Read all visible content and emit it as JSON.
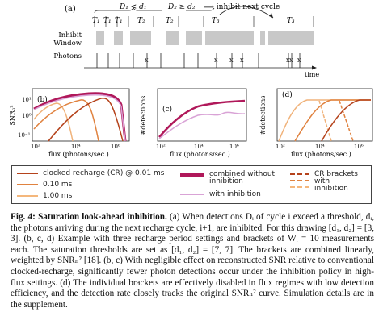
{
  "panel_a": {
    "label": "(a)",
    "d1_rule": "D₁ < d₁",
    "d2_rule": "D₂ ≥ d₂",
    "arrow_text": "⟹ inhibit next cycle",
    "t_labels": [
      "T₁",
      "T₁",
      "T₁",
      "T₂",
      "T₂",
      "T₃",
      "T₃"
    ],
    "row_inhibit": "Inhibit",
    "row_window": "Window",
    "row_photons": "Photons",
    "time_label": "time",
    "x_mark": "x"
  },
  "chart_data": [
    {
      "type": "line",
      "panel": "(b)",
      "xlabel": "flux (photons/sec.)",
      "ylabel": "SNRₙ²",
      "xscale": "log",
      "yscale": "log",
      "x_ticks": [
        "10²",
        "10⁴",
        "10⁶"
      ],
      "y_ticks": [
        "10¹",
        "10⁰",
        "10⁻¹"
      ],
      "series": [
        {
          "name": "clocked recharge (CR) @ 0.01 ms",
          "color": "#b5431c",
          "x": [
            100,
            1000,
            10000,
            100000,
            300000,
            1000000
          ],
          "y": [
            0.5,
            1.1,
            1.8,
            3,
            4,
            0.2
          ]
        },
        {
          "name": "0.10 ms",
          "color": "#e0823f",
          "x": [
            100,
            1000,
            10000,
            30000,
            100000
          ],
          "y": [
            0.5,
            1.1,
            2.5,
            3,
            0.2
          ]
        },
        {
          "name": "1.00 ms",
          "color": "#f0b27a",
          "x": [
            100,
            1000,
            3000,
            10000
          ],
          "y": [
            0.5,
            1.6,
            2,
            0.2
          ]
        },
        {
          "name": "combined without inhibition",
          "color": "#b0185a",
          "x": [
            100,
            1000,
            10000,
            100000,
            1000000
          ],
          "y": [
            0.6,
            2.5,
            3.5,
            4,
            0.5
          ]
        },
        {
          "name": "with inhibition",
          "color": "#d9a3d6",
          "x": [
            100,
            1000,
            10000,
            100000,
            1000000
          ],
          "y": [
            0.6,
            2.4,
            3.3,
            3.8,
            0.5
          ]
        }
      ]
    },
    {
      "type": "line",
      "panel": "(c)",
      "xlabel": "flux (photons/sec.)",
      "ylabel": "#detections",
      "xscale": "log",
      "x_ticks": [
        "10²",
        "10⁴",
        "10⁶"
      ],
      "series": [
        {
          "name": "combined without inhibition",
          "color": "#b0185a",
          "x": [
            100,
            1000,
            10000,
            100000,
            1000000
          ],
          "y": [
            0.15,
            0.6,
            0.85,
            0.95,
            0.97
          ]
        },
        {
          "name": "with inhibition",
          "color": "#d9a3d6",
          "x": [
            100,
            1000,
            10000,
            100000,
            1000000
          ],
          "y": [
            0.1,
            0.45,
            0.6,
            0.55,
            0.6
          ]
        }
      ]
    },
    {
      "type": "line",
      "panel": "(d)",
      "xlabel": "flux (photons/sec.)",
      "ylabel": "#detections",
      "xscale": "log",
      "x_ticks": [
        "10²",
        "10⁴",
        "10⁶"
      ],
      "series": [
        {
          "name": "1.00 ms",
          "color": "#f0b27a",
          "x": [
            100,
            1000,
            10000,
            100000,
            1000000
          ],
          "y": [
            0.05,
            0.6,
            0.95,
            0.97,
            0.97
          ]
        },
        {
          "name": "0.10 ms",
          "color": "#e0823f",
          "x": [
            100,
            1000,
            10000,
            100000,
            1000000
          ],
          "y": [
            0.0,
            0.1,
            0.6,
            0.95,
            0.97
          ]
        },
        {
          "name": "clocked recharge (CR) @ 0.01 ms",
          "color": "#b5431c",
          "x": [
            100,
            1000,
            10000,
            100000,
            1000000
          ],
          "y": [
            0.0,
            0.0,
            0.1,
            0.6,
            0.95
          ]
        }
      ]
    }
  ],
  "legend": {
    "cr_001": "clocked recharge (CR) @ 0.01 ms",
    "cr_010": "0.10 ms",
    "cr_100": "1.00 ms",
    "combined": "combined without\ninhibition",
    "with_inhib": "with inhibition",
    "brackets": "CR brackets\nwith\ninhibition"
  },
  "colors": {
    "cr_001": "#b5431c",
    "cr_010": "#e0823f",
    "cr_100": "#f4b77c",
    "combined": "#b0185a",
    "with_inhib": "#d9a3d6",
    "window_gray": "#c8c8c8"
  },
  "caption": {
    "label": "Fig. 4: Saturation look-ahead inhibition.",
    "lines": [
      "(a) When detections Dᵢ of cycle i exceed",
      "a threshold, dᵢ, the photons arriving during the next recharge cycle, i+1, are inhibited.",
      "For this drawing [d₁, d₂] = [3, 3]. (b, c, d) Example with three recharge period settings",
      "and brackets of Wᵢ = 10 measurements each. The saturation thresholds are set as",
      "[d₁, d₂] = [7, 7]. The brackets are combined linearly, weighted by SNRₙ² [18]. (b, c)",
      "With negligible effect on reconstructed SNR relative to conventional clocked-recharge,",
      "significantly fewer photon detections occur under the inhibition policy in high-flux",
      "settings. (d) The individual brackets are effectively disabled in flux regimes with low",
      "detection efficiency, and the detection rate closely tracks the original SNRₙ² curve.",
      "Simulation details are in the supplement."
    ]
  }
}
